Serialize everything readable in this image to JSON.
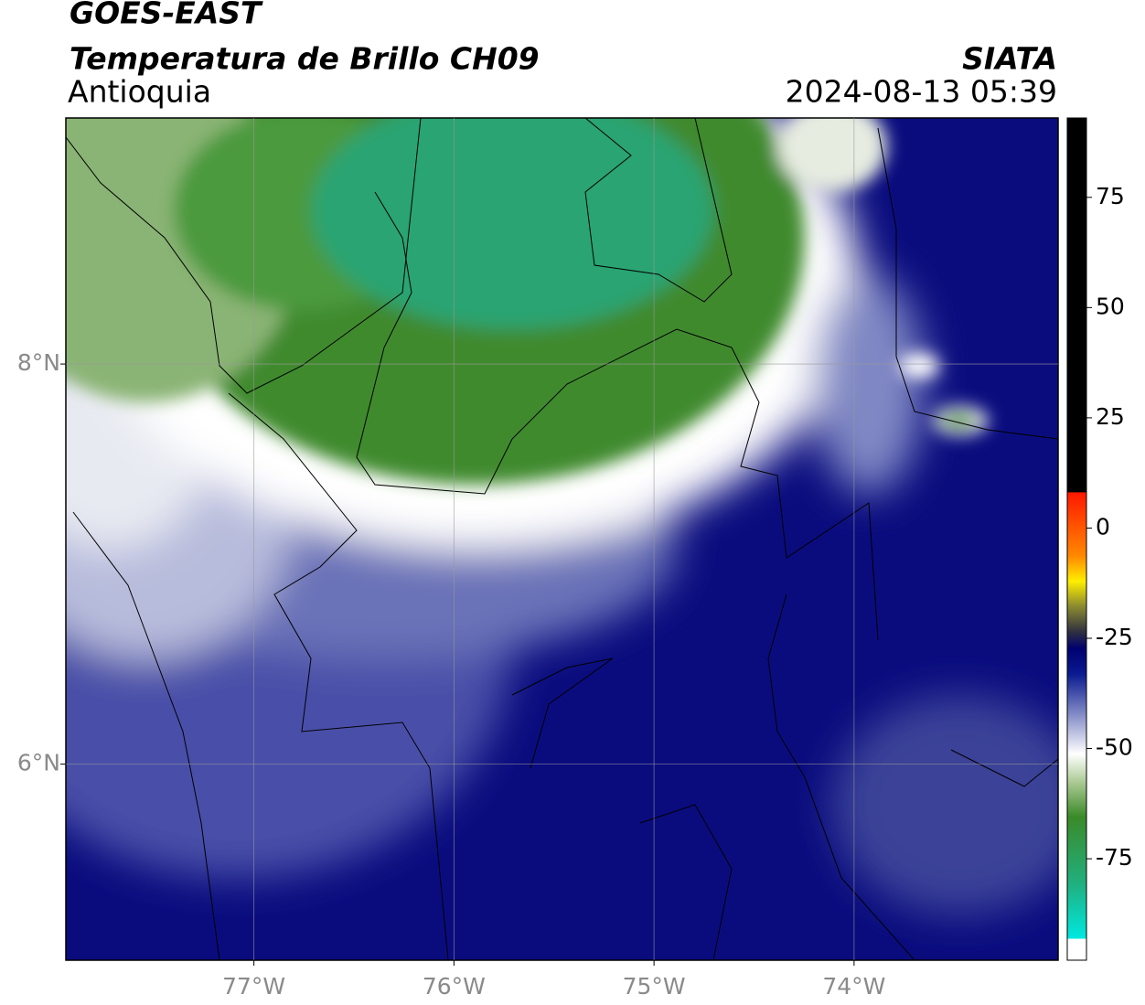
{
  "header": {
    "title": "GOES-EAST",
    "product": "Temperatura de Brillo CH09",
    "region": "Antioquia",
    "source": "SIATA",
    "timestamp": "2024-08-13 05:39"
  },
  "map": {
    "xlim": [
      -77.94,
      -72.98
    ],
    "ylim": [
      5.02,
      9.23
    ],
    "xticks": [
      {
        "value": -77,
        "label": "77°W"
      },
      {
        "value": -76,
        "label": "76°W"
      },
      {
        "value": -75,
        "label": "75°W"
      },
      {
        "value": -74,
        "label": "74°W"
      }
    ],
    "yticks": [
      {
        "value": 6,
        "label": "6°N"
      },
      {
        "value": 8,
        "label": "8°N"
      }
    ],
    "grid": true
  },
  "colorbar": {
    "clim": [
      -98,
      93
    ],
    "ticks": [
      -75,
      -50,
      -25,
      0,
      25,
      50,
      75
    ]
  }
}
